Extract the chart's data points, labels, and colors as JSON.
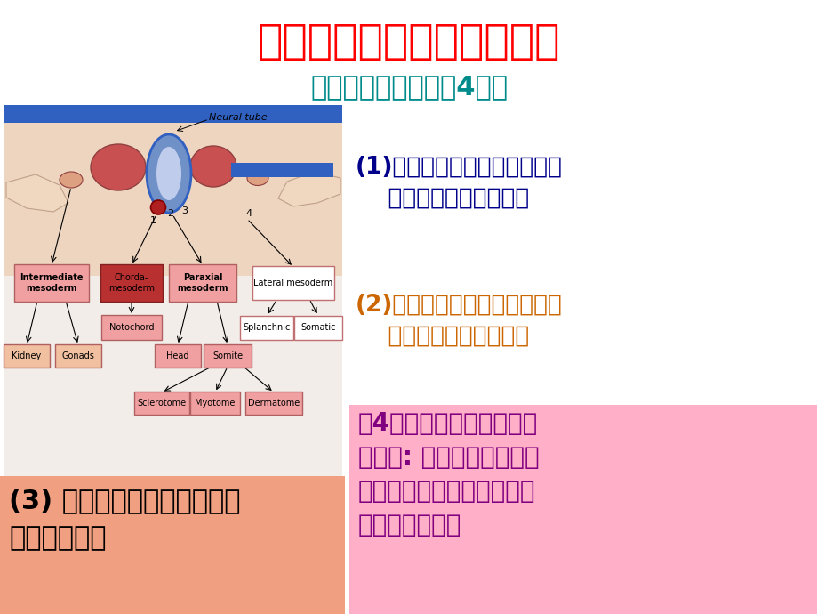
{
  "title": "第二节、中胚层与器官形成",
  "subtitle": "脊椎动物中胚层分为4部分",
  "title_color": "#FF0000",
  "subtitle_color": "#008B8B",
  "bg_color": "#FFFFFF",
  "text1_color": "#00008B",
  "text2_color": "#CC6600",
  "text3_color": "#000000",
  "text4_color": "#800080",
  "box3_bg": "#F0A080",
  "box4_bg": "#FFB0C8",
  "text1_line1": "(1)脊索：处于中线，诱导神经",
  "text1_line2": "    管形成和建立前后体轴",
  "text2_line1": "(2)轴旁中胚层：变为体节，头",
  "text2_line2": "    部结缔组织和面部肌肉",
  "text3_line1": "(3) 中间中胚层：形成性腺、",
  "text3_line2": "肾脏和肾上腺",
  "text4_line1": "（4）侧板中胚层：被体腔",
  "text4_line2": "分隔为: 外体中胚层（形成",
  "text4_line3": "肋骨）、内脏中胚层（形成",
  "text4_line4": "肠系膜和心脏）"
}
